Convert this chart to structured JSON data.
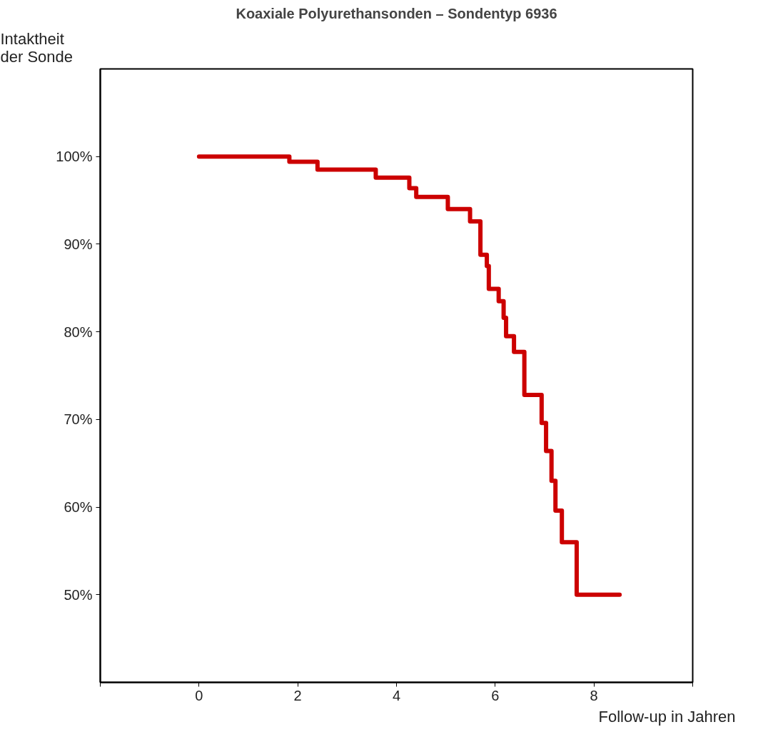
{
  "chart_data": {
    "type": "step",
    "title": "Koaxiale Polyurethansonden – Sondentyp 6936",
    "ylabel": "Intaktheit\nder Sonde",
    "xlabel": "Follow-up in Jahren",
    "x": [
      0,
      1.83,
      2.4,
      3.58,
      4.26,
      4.4,
      5.04,
      5.49,
      5.7,
      5.83,
      5.87,
      6.07,
      6.17,
      6.22,
      6.38,
      6.59,
      6.94,
      7.03,
      7.14,
      7.22,
      7.35,
      7.65,
      8.52
    ],
    "series": [
      {
        "color": "#cc0000",
        "values": [
          100,
          99.4,
          98.5,
          97.6,
          96.4,
          95.4,
          94.0,
          92.6,
          88.8,
          87.5,
          84.9,
          83.5,
          81.6,
          79.5,
          77.7,
          72.8,
          69.6,
          66.4,
          63.0,
          59.6,
          56.0,
          50.0,
          50.0
        ]
      }
    ],
    "xlim": [
      -2,
      10
    ],
    "ylim": [
      40,
      110
    ],
    "xticks": [
      {
        "value": -2,
        "label": null
      },
      0,
      2,
      4,
      6,
      8,
      {
        "value": 10,
        "label": null
      }
    ],
    "yticks": [
      {
        "value": 50,
        "label": "50%"
      },
      {
        "value": 60,
        "label": "60%"
      },
      {
        "value": 70,
        "label": "70%"
      },
      {
        "value": 80,
        "label": "80%"
      },
      {
        "value": 90,
        "label": "90%"
      },
      {
        "value": 100,
        "label": "100%"
      }
    ],
    "grid": false,
    "marker": "none",
    "line_style": "solid"
  }
}
